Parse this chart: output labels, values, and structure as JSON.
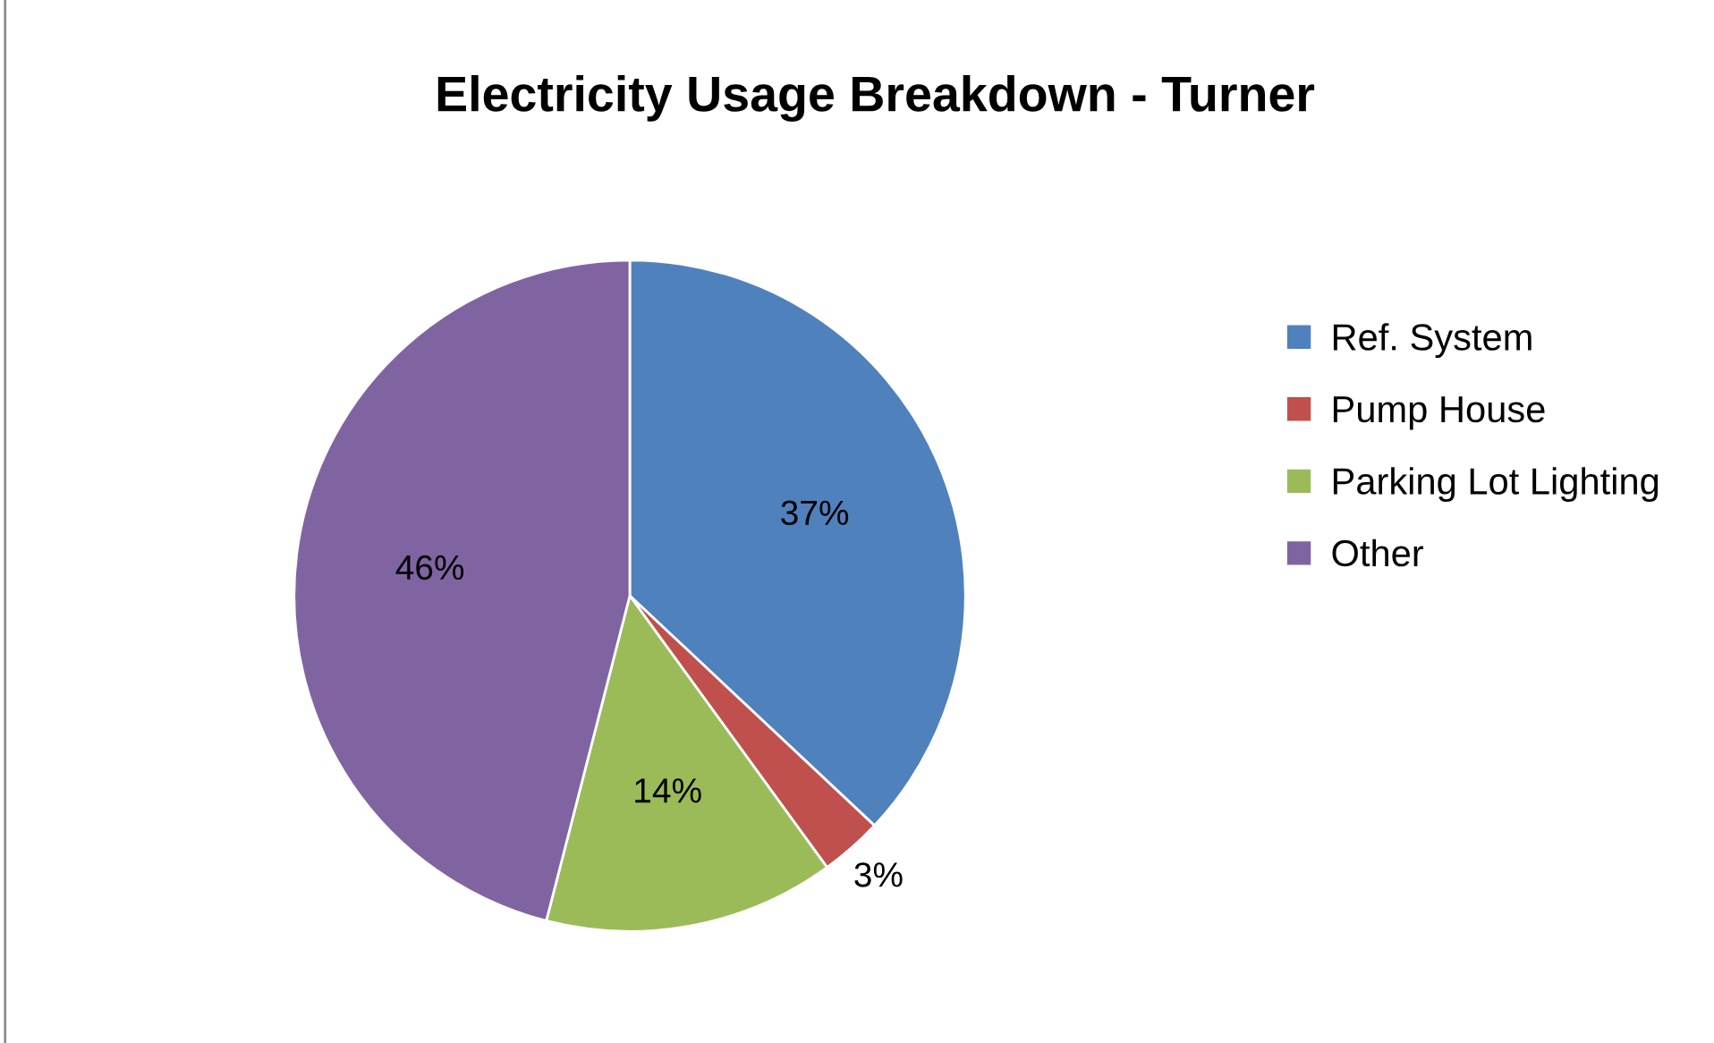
{
  "chart_data": {
    "type": "pie",
    "title": "Electricity Usage Breakdown - Turner",
    "categories": [
      "Ref. System",
      "Pump House",
      "Parking Lot Lighting",
      "Other"
    ],
    "values": [
      37,
      3,
      14,
      46
    ],
    "colors": [
      "#4f81bd",
      "#c0504d",
      "#9bbb59",
      "#8064a2"
    ],
    "value_labels": [
      "37%",
      "3%",
      "14%",
      "46%"
    ],
    "legend": "right"
  }
}
